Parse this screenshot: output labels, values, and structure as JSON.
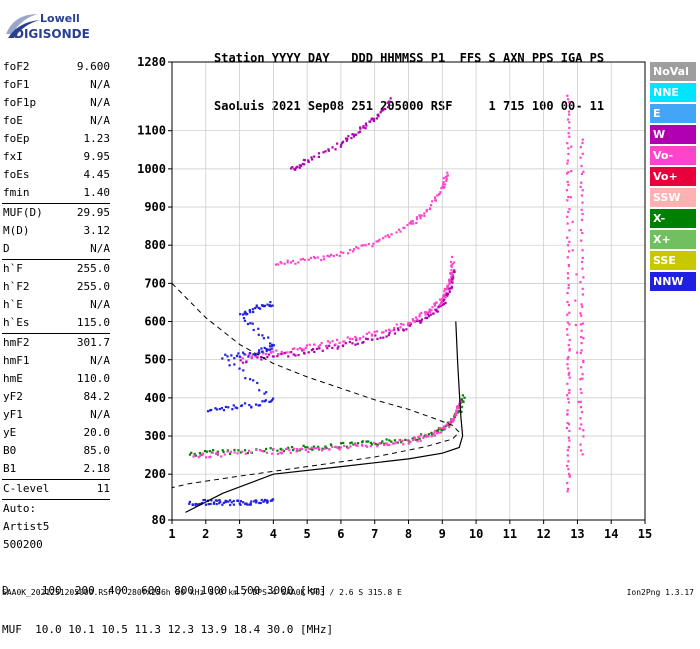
{
  "logo": {
    "line1": "Lowell",
    "line2": "DIGISONDE"
  },
  "header": {
    "line1": "Station YYYY DAY   DDD HHMMSS P1  FFS S AXN PPS IGA PS",
    "line2": "SaoLuis 2021 Sep08 251 205000 RSF     1 715 100 00- 11"
  },
  "params": [
    {
      "name": "foF2",
      "value": "9.600"
    },
    {
      "name": "foF1",
      "value": "N/A"
    },
    {
      "name": "foF1p",
      "value": "N/A"
    },
    {
      "name": "foE",
      "value": "N/A"
    },
    {
      "name": "foEp",
      "value": "1.23"
    },
    {
      "name": "fxI",
      "value": "9.95"
    },
    {
      "name": "foEs",
      "value": "4.45"
    },
    {
      "name": "fmin",
      "value": "1.40"
    },
    {
      "sep": true
    },
    {
      "name": "MUF(D)",
      "value": "29.95"
    },
    {
      "name": "M(D)",
      "value": "3.12"
    },
    {
      "name": "D",
      "value": "N/A"
    },
    {
      "sep": true
    },
    {
      "name": "h`F",
      "value": "255.0"
    },
    {
      "name": "h`F2",
      "value": "255.0"
    },
    {
      "name": "h`E",
      "value": "N/A"
    },
    {
      "name": "h`Es",
      "value": "115.0"
    },
    {
      "sep": true
    },
    {
      "name": "hmF2",
      "value": "301.7"
    },
    {
      "name": "hmF1",
      "value": "N/A"
    },
    {
      "name": "hmE",
      "value": "110.0"
    },
    {
      "name": "yF2",
      "value": "84.2"
    },
    {
      "name": "yF1",
      "value": "N/A"
    },
    {
      "name": "yE",
      "value": "20.0"
    },
    {
      "name": "B0",
      "value": "85.0"
    },
    {
      "name": "B1",
      "value": "2.18"
    },
    {
      "sep": true
    },
    {
      "name": "C-level",
      "value": "11"
    },
    {
      "sep": true
    },
    {
      "text": "Auto:"
    },
    {
      "text": "Artist5"
    },
    {
      "text": "500200"
    }
  ],
  "legend": [
    {
      "label": "NoVal",
      "color": "#9e9e9e"
    },
    {
      "label": "NNE",
      "color": "#00e5ff"
    },
    {
      "label": "E",
      "color": "#42a5f5"
    },
    {
      "label": "W",
      "color": "#b000b0"
    },
    {
      "label": "Vo-",
      "color": "#ff44cc"
    },
    {
      "label": "Vo+",
      "color": "#e8003c"
    },
    {
      "label": "SSW",
      "color": "#ffb0b0"
    },
    {
      "label": "X-",
      "color": "#008000"
    },
    {
      "label": "X+",
      "color": "#70c060"
    },
    {
      "label": "SSE",
      "color": "#c8c800"
    },
    {
      "label": "NNW",
      "color": "#2020e0"
    }
  ],
  "footer": {
    "d_row": "D     100  200  400  600  800 1000 1500 3000 [km]",
    "muf_row": "MUF  10.0 10.1 10.5 11.3 12.3 13.9 18.4 30.0 [MHz]"
  },
  "bottom_line": "SAA0K_2021251205000.RSF / 280fx256h 50 kHz 5.0 km / DPS-4 SAA0K 903 / 2.6 S 315.8 E",
  "version": "Ion2Png 1.3.17",
  "chart_data": {
    "type": "scatter",
    "x_ticks": [
      "1",
      "2",
      "3",
      "4",
      "5",
      "6",
      "7",
      "8",
      "9",
      "10",
      "11",
      "12",
      "13",
      "14",
      "15"
    ],
    "y_ticks": [
      "80",
      "200",
      "300",
      "400",
      "500",
      "600",
      "700",
      "800",
      "900",
      "1000",
      "1100",
      "1280"
    ],
    "xlim": [
      1,
      15
    ],
    "ylim": [
      80,
      1280
    ],
    "grid": true,
    "traces": [
      {
        "name": "X-",
        "points": [
          [
            1.5,
            255
          ],
          [
            2.5,
            262
          ],
          [
            4,
            266
          ],
          [
            5,
            272
          ],
          [
            6,
            278
          ],
          [
            7,
            285
          ],
          [
            8,
            294
          ],
          [
            8.8,
            312
          ],
          [
            9.2,
            335
          ],
          [
            9.5,
            372
          ],
          [
            9.6,
            410
          ]
        ]
      },
      {
        "name": "Vo-",
        "points": [
          [
            1.6,
            250
          ],
          [
            2.5,
            256
          ],
          [
            4,
            262
          ],
          [
            5,
            267
          ],
          [
            6,
            273
          ],
          [
            7,
            280
          ],
          [
            8,
            289
          ],
          [
            8.6,
            303
          ],
          [
            9.1,
            328
          ],
          [
            9.4,
            360
          ],
          [
            9.5,
            395
          ]
        ]
      },
      {
        "name": "NNW",
        "points": [
          [
            1.5,
            125
          ],
          [
            2,
            130
          ],
          [
            2.5,
            128
          ],
          [
            3,
            128
          ],
          [
            3.5,
            130
          ],
          [
            4,
            133
          ]
        ]
      },
      {
        "name": "W",
        "points": [
          [
            3,
            500
          ],
          [
            4,
            512
          ],
          [
            5,
            525
          ],
          [
            6,
            540
          ],
          [
            7,
            560
          ],
          [
            8,
            590
          ],
          [
            8.6,
            620
          ],
          [
            9,
            650
          ],
          [
            9.2,
            690
          ],
          [
            9.3,
            740
          ]
        ]
      },
      {
        "name": "Vo-",
        "points": [
          [
            3,
            510
          ],
          [
            4,
            520
          ],
          [
            5,
            535
          ],
          [
            6,
            552
          ],
          [
            7,
            572
          ],
          [
            8,
            600
          ],
          [
            8.6,
            630
          ],
          [
            9,
            665
          ],
          [
            9.2,
            710
          ],
          [
            9.3,
            770
          ]
        ]
      },
      {
        "name": "Vo-",
        "points": [
          [
            4,
            750
          ],
          [
            5,
            765
          ],
          [
            6,
            780
          ],
          [
            7,
            810
          ],
          [
            8,
            855
          ],
          [
            8.5,
            890
          ],
          [
            9,
            950
          ],
          [
            9.1,
            995
          ]
        ]
      },
      {
        "name": "W",
        "points": [
          [
            4.5,
            1000
          ],
          [
            5,
            1025
          ],
          [
            6,
            1070
          ],
          [
            6.5,
            1100
          ],
          [
            7,
            1140
          ],
          [
            7.5,
            1185
          ]
        ]
      },
      {
        "name": "Vo-",
        "points": [
          [
            12.7,
            160
          ],
          [
            12.7,
            300
          ],
          [
            12.7,
            450
          ],
          [
            12.7,
            600
          ],
          [
            12.7,
            800
          ],
          [
            12.7,
            1000
          ],
          [
            12.7,
            1200
          ],
          [
            13.1,
            250
          ],
          [
            13.1,
            480
          ],
          [
            13.1,
            650
          ],
          [
            13.1,
            900
          ],
          [
            13.1,
            1100
          ]
        ]
      },
      {
        "name": "NNW",
        "points": [
          [
            2,
            370
          ],
          [
            3,
            380
          ],
          [
            4,
            395
          ],
          [
            2.5,
            510
          ],
          [
            3.5,
            520
          ],
          [
            4,
            540
          ],
          [
            3,
            620
          ],
          [
            3.5,
            640
          ],
          [
            4,
            650
          ]
        ]
      }
    ],
    "profile": [
      [
        1.4,
        100
      ],
      [
        2.5,
        150
      ],
      [
        4,
        200
      ],
      [
        6,
        220
      ],
      [
        8,
        240
      ],
      [
        9,
        255
      ],
      [
        9.5,
        270
      ],
      [
        9.6,
        300
      ],
      [
        9.55,
        350
      ],
      [
        9.5,
        420
      ],
      [
        9.45,
        500
      ],
      [
        9.4,
        600
      ]
    ],
    "dashed_profile": [
      [
        1,
        700
      ],
      [
        2,
        610
      ],
      [
        3,
        540
      ],
      [
        4,
        490
      ],
      [
        5,
        455
      ],
      [
        6,
        425
      ],
      [
        7,
        395
      ],
      [
        8,
        370
      ],
      [
        8.8,
        345
      ],
      [
        9.3,
        328
      ],
      [
        9.5,
        310
      ],
      [
        9.3,
        292
      ],
      [
        8.5,
        272
      ],
      [
        7,
        245
      ],
      [
        5,
        220
      ],
      [
        3,
        195
      ],
      [
        1.5,
        175
      ],
      [
        1,
        165
      ]
    ]
  }
}
